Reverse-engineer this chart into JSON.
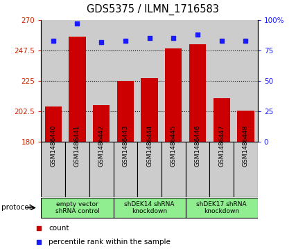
{
  "title": "GDS5375 / ILMN_1716583",
  "samples": [
    "GSM1486440",
    "GSM1486441",
    "GSM1486442",
    "GSM1486443",
    "GSM1486444",
    "GSM1486445",
    "GSM1486446",
    "GSM1486447",
    "GSM1486448"
  ],
  "count_values": [
    206,
    258,
    207,
    225,
    227,
    249,
    252,
    212,
    203
  ],
  "percentile_values": [
    83,
    97,
    82,
    83,
    85,
    85,
    88,
    83,
    83
  ],
  "ylim_left": [
    180,
    270
  ],
  "ylim_right": [
    0,
    100
  ],
  "yticks_left": [
    180,
    202.5,
    225,
    247.5,
    270
  ],
  "yticks_right": [
    0,
    25,
    50,
    75,
    100
  ],
  "ytick_labels_left": [
    "180",
    "202.5",
    "225",
    "247.5",
    "270"
  ],
  "ytick_labels_right": [
    "0",
    "25",
    "50",
    "75",
    "100%"
  ],
  "group_labels": [
    "empty vector\nshRNA control",
    "shDEK14 shRNA\nknockdown",
    "shDEK17 shRNA\nknockdown"
  ],
  "group_boundaries": [
    0,
    3,
    6,
    9
  ],
  "bar_color": "#CC0000",
  "dot_color": "#1A1AFF",
  "left_tick_color": "#CC2200",
  "right_tick_color": "#1A1AFF",
  "protocol_label": "protocol",
  "legend_count_label": "count",
  "legend_percentile_label": "percentile rank within the sample",
  "sample_bg_color": "#cccccc",
  "group_color": "#90EE90"
}
